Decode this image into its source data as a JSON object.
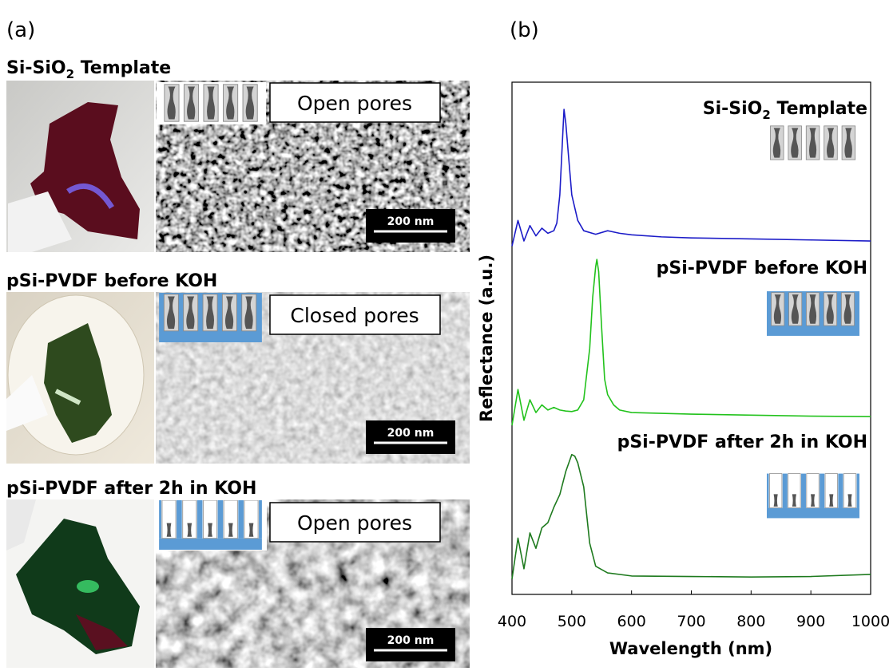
{
  "panel_a": {
    "label": "(a)",
    "rows": [
      {
        "title": {
          "prefix": "Si-SiO",
          "sub": "2",
          "suffix": " Template"
        },
        "pores": "Open pores",
        "scale_bar": "200 nm"
      },
      {
        "title": "pSi-PVDF before KOH",
        "pores": "Closed pores",
        "scale_bar": "200 nm"
      },
      {
        "title": "pSi-PVDF after 2h in KOH",
        "pores": "Open pores",
        "scale_bar": "200 nm"
      }
    ]
  },
  "panel_b_label": "(b)",
  "chart_data": {
    "type": "line",
    "x_label": "Wavelength (nm)",
    "y_label": "Reflectance (a.u.)",
    "xlim": [
      400,
      1000
    ],
    "xticks": [
      400,
      500,
      600,
      700,
      800,
      900,
      1000
    ],
    "ylim": [
      0,
      100
    ],
    "series": [
      {
        "name": {
          "prefix": "Si-SiO",
          "sub": "2",
          "suffix": " Template"
        },
        "color": "#1c1cc8",
        "x": [
          400,
          410,
          420,
          430,
          440,
          450,
          460,
          470,
          475,
          480,
          485,
          487,
          490,
          495,
          500,
          510,
          520,
          540,
          560,
          580,
          600,
          650,
          700,
          800,
          900,
          1000
        ],
        "values": [
          68,
          73,
          69,
          72,
          70,
          71.5,
          70.5,
          71,
          72.5,
          78,
          90,
          94.7,
          92,
          85,
          78,
          73,
          71,
          70.3,
          71,
          70.5,
          70.2,
          69.8,
          69.6,
          69.4,
          69.2,
          69
        ]
      },
      {
        "name": "pSi-PVDF before KOH",
        "color": "#22c21c",
        "x": [
          400,
          410,
          420,
          430,
          440,
          450,
          460,
          470,
          480,
          490,
          500,
          510,
          520,
          530,
          535,
          540,
          542,
          545,
          550,
          555,
          560,
          570,
          580,
          600,
          700,
          800,
          900,
          1000
        ],
        "values": [
          33,
          40,
          34,
          38,
          35.5,
          37,
          36,
          36.5,
          36,
          35.8,
          35.7,
          36,
          38,
          48,
          58,
          64,
          65.4,
          63,
          52,
          42,
          39,
          37,
          36,
          35.5,
          35.2,
          35,
          34.8,
          34.7
        ]
      },
      {
        "name": "pSi-PVDF after 2h in KOH",
        "color": "#1e7a1e",
        "x": [
          400,
          410,
          420,
          430,
          440,
          450,
          460,
          470,
          480,
          490,
          500,
          505,
          510,
          520,
          530,
          540,
          560,
          600,
          700,
          800,
          900,
          1000
        ],
        "values": [
          3,
          11,
          5,
          12,
          9,
          13,
          14,
          17,
          19.5,
          24,
          27.3,
          27,
          25.7,
          21,
          10,
          5.5,
          4.2,
          3.6,
          3.5,
          3.4,
          3.5,
          3.9
        ]
      }
    ]
  }
}
